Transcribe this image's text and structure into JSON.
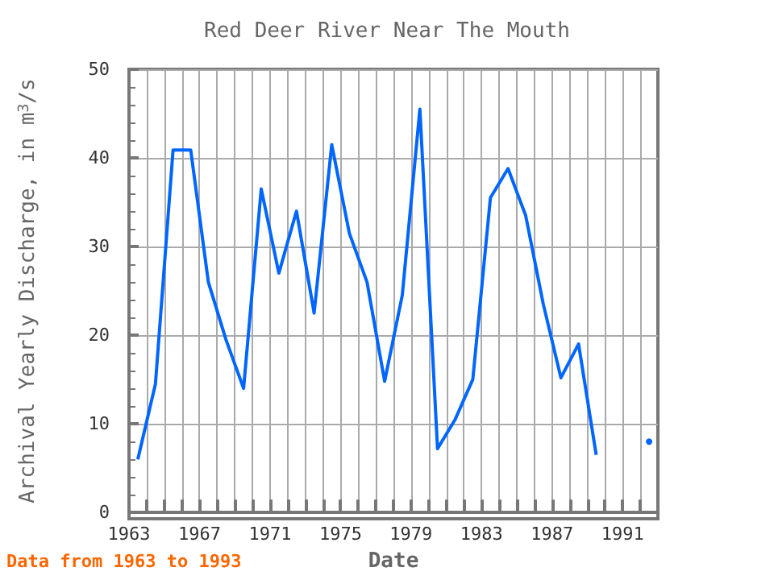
{
  "chart_data": {
    "type": "line",
    "title": "Red Deer River Near The Mouth",
    "xlabel": "Date",
    "ylabel": "Archival Yearly Discharge, in m$^{3}$/s",
    "x": [
      1963.5,
      1964.5,
      1965.5,
      1966.5,
      1967.5,
      1968.5,
      1969.5,
      1970.5,
      1971.5,
      1972.5,
      1973.5,
      1974.5,
      1975.5,
      1976.5,
      1977.5,
      1978.5,
      1979.5,
      1980.5,
      1981.5,
      1982.5,
      1983.5,
      1984.5,
      1985.5,
      1986.5,
      1987.5,
      1988.5,
      1989.5,
      1990.5,
      1991.5,
      1992.5
    ],
    "series": [
      {
        "color": "#0066ff",
        "values": [
          6,
          14.5,
          40.9,
          40.9,
          26,
          19.5,
          14,
          36.5,
          27,
          34,
          22.5,
          41.5,
          31.5,
          26,
          14.8,
          24.5,
          45.5,
          7.2,
          10.5,
          15,
          35.5,
          38.8,
          33.5,
          23.5,
          15.2,
          19,
          6.5,
          null,
          null,
          8
        ]
      }
    ],
    "xlim": [
      1963,
      1993
    ],
    "ylim": [
      0,
      50
    ],
    "xticks": [
      1963,
      {
        "value": 1964,
        "label": null
      },
      {
        "value": 1965,
        "label": null
      },
      {
        "value": 1966,
        "label": null
      },
      1967,
      {
        "value": 1968,
        "label": null
      },
      {
        "value": 1969,
        "label": null
      },
      {
        "value": 1970,
        "label": null
      },
      1971,
      {
        "value": 1972,
        "label": null
      },
      {
        "value": 1973,
        "label": null
      },
      {
        "value": 1974,
        "label": null
      },
      1975,
      {
        "value": 1976,
        "label": null
      },
      {
        "value": 1977,
        "label": null
      },
      {
        "value": 1978,
        "label": null
      },
      1979,
      {
        "value": 1980,
        "label": null
      },
      {
        "value": 1981,
        "label": null
      },
      {
        "value": 1982,
        "label": null
      },
      1983,
      {
        "value": 1984,
        "label": null
      },
      {
        "value": 1985,
        "label": null
      },
      {
        "value": 1986,
        "label": null
      },
      1987,
      {
        "value": 1988,
        "label": null
      },
      {
        "value": 1989,
        "label": null
      },
      {
        "value": 1990,
        "label": null
      },
      1991,
      {
        "value": 1992,
        "label": null
      }
    ],
    "yticks": [
      0,
      10,
      20,
      30,
      40,
      50
    ],
    "grid": true,
    "annotations": [
      "Data from 1963 to 1993"
    ]
  }
}
